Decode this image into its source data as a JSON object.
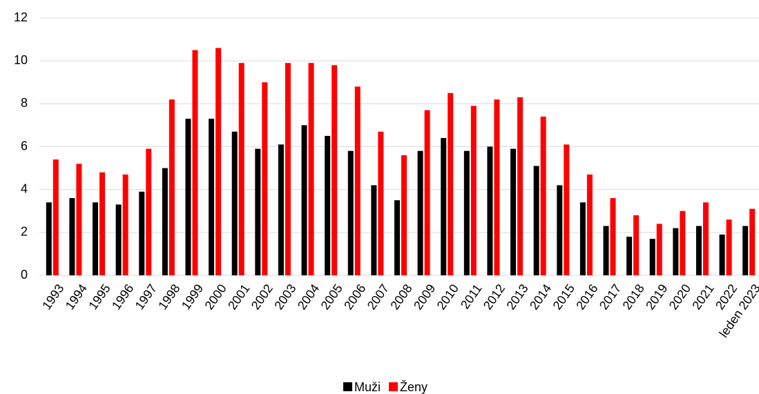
{
  "chart_data": {
    "type": "bar",
    "categories": [
      "1993",
      "1994",
      "1995",
      "1996",
      "1997",
      "1998",
      "1999",
      "2000",
      "2001",
      "2002",
      "2003",
      "2004",
      "2005",
      "2006",
      "2007",
      "2008",
      "2009",
      "2010",
      "2011",
      "2012",
      "2013",
      "2014",
      "2015",
      "2016",
      "2017",
      "2018",
      "2019",
      "2020",
      "2021",
      "2022",
      "leden 2023"
    ],
    "series": [
      {
        "name": "Muži",
        "color": "#000000",
        "values": [
          3.4,
          3.6,
          3.4,
          3.3,
          3.9,
          5.0,
          7.3,
          7.3,
          6.7,
          5.9,
          6.1,
          7.0,
          6.5,
          5.8,
          4.2,
          3.5,
          5.8,
          6.4,
          5.8,
          6.0,
          5.9,
          5.1,
          4.2,
          3.4,
          2.3,
          1.8,
          1.7,
          2.2,
          2.3,
          1.9,
          2.3
        ]
      },
      {
        "name": "Ženy",
        "color": "#ff0000",
        "values": [
          5.4,
          5.2,
          4.8,
          4.7,
          5.9,
          8.2,
          10.5,
          10.6,
          9.9,
          9.0,
          9.9,
          9.9,
          9.8,
          8.8,
          6.7,
          5.6,
          7.7,
          8.5,
          7.9,
          8.2,
          8.3,
          7.4,
          6.1,
          4.7,
          3.6,
          2.8,
          2.4,
          3.0,
          3.4,
          2.6,
          3.1
        ]
      }
    ],
    "ylim": [
      0,
      12
    ],
    "yticks": [
      0,
      2,
      4,
      6,
      8,
      10,
      12
    ],
    "grid": true,
    "legend": "bottom"
  }
}
